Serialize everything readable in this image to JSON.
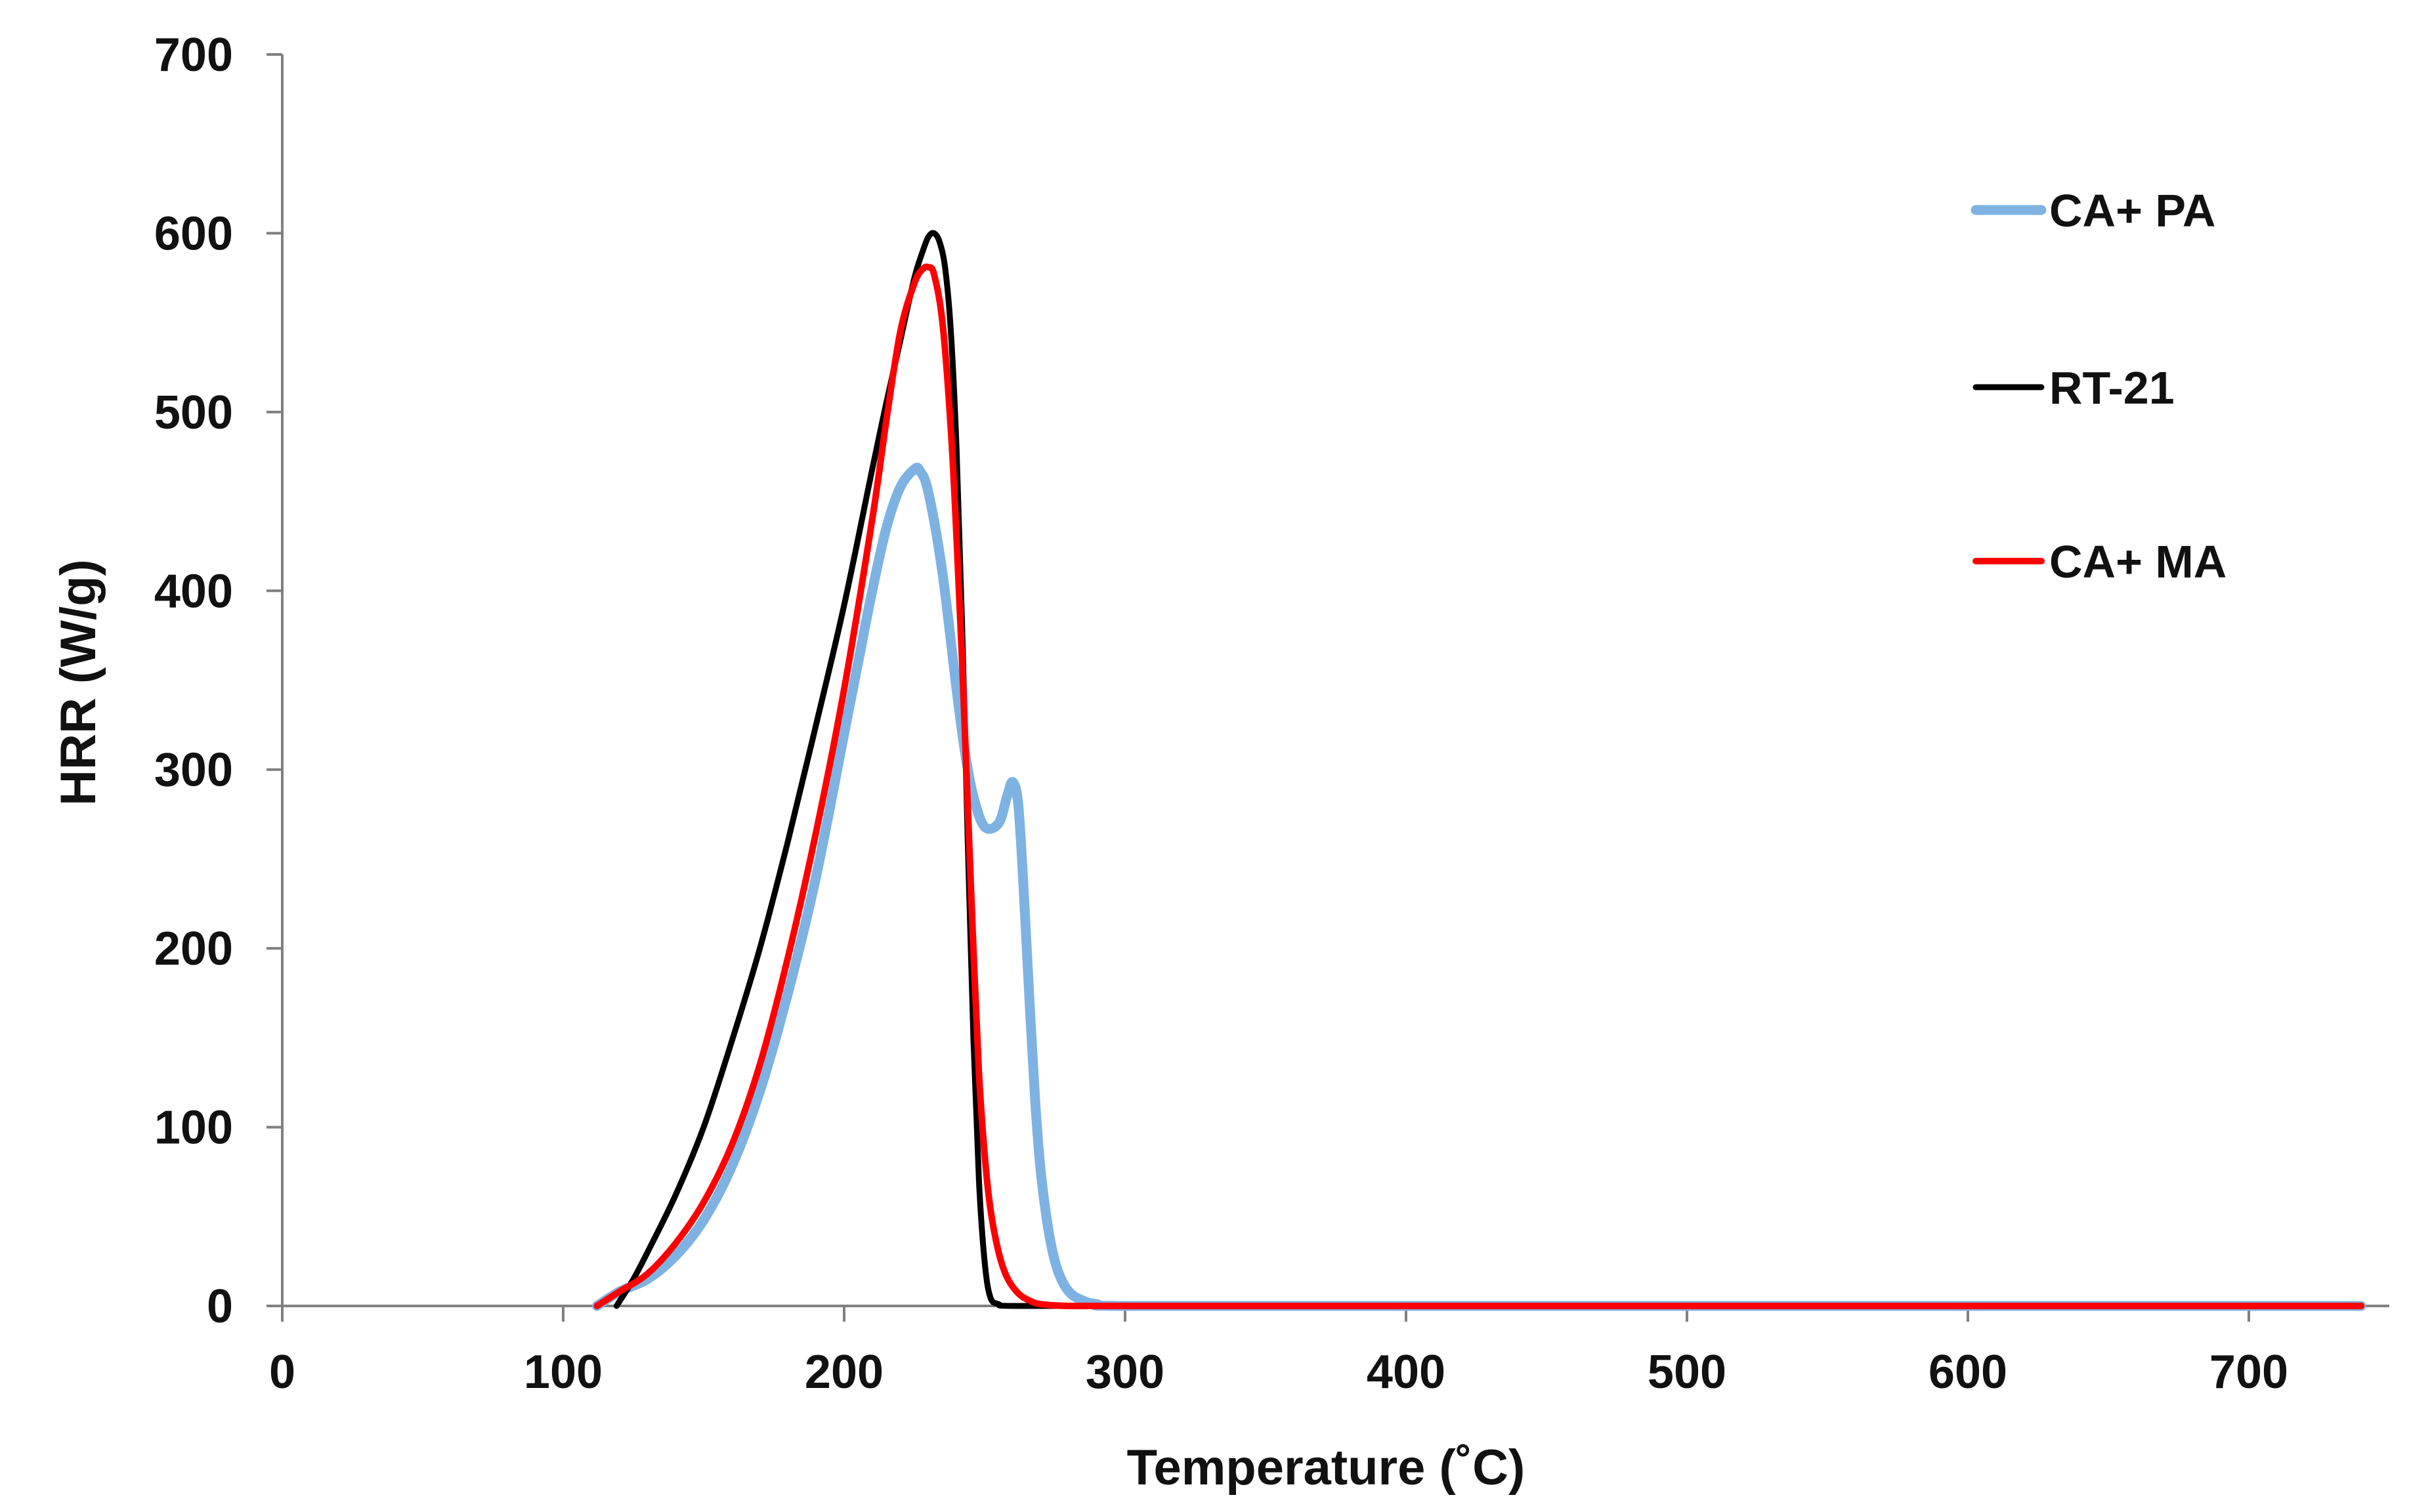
{
  "chart_data": {
    "type": "line",
    "title": "",
    "xlabel": "Temperature (˚C)",
    "ylabel": "HRR (W/g)",
    "xlim": [
      0,
      750
    ],
    "ylim": [
      0,
      700
    ],
    "xticks": [
      "0",
      "100",
      "200",
      "300",
      "400",
      "500",
      "600",
      "700"
    ],
    "yticks": [
      "0",
      "100",
      "200",
      "300",
      "400",
      "500",
      "600",
      "700"
    ],
    "legend_position": "top-right",
    "series": [
      {
        "name": "CA+ PA",
        "color": "#7eb2e2",
        "x": [
          112,
          120,
          130,
          140,
          150,
          160,
          170,
          180,
          190,
          200,
          205,
          210,
          215,
          220,
          225,
          227,
          230,
          235,
          240,
          243,
          246,
          250,
          255,
          258,
          260,
          262,
          264,
          266,
          268,
          270,
          273,
          276,
          280,
          285,
          290,
          300,
          400,
          500,
          600,
          740
        ],
        "y": [
          0,
          8,
          15,
          28,
          48,
          78,
          120,
          175,
          240,
          320,
          360,
          400,
          435,
          458,
          468,
          467,
          455,
          410,
          345,
          310,
          285,
          268,
          270,
          285,
          293,
          280,
          230,
          170,
          115,
          75,
          40,
          20,
          8,
          3,
          1,
          0,
          0,
          0,
          0,
          0
        ]
      },
      {
        "name": "RT-21",
        "color": "#000000",
        "x": [
          119,
          125,
          130,
          140,
          150,
          160,
          170,
          180,
          190,
          200,
          210,
          215,
          220,
          225,
          228,
          230,
          232,
          234,
          236,
          238,
          240,
          242,
          244,
          246,
          248,
          250,
          252,
          255,
          260,
          300,
          400,
          500,
          600,
          740
        ],
        "y": [
          0,
          15,
          30,
          62,
          100,
          148,
          200,
          260,
          325,
          392,
          468,
          505,
          540,
          575,
          590,
          598,
          600,
          595,
          580,
          545,
          480,
          380,
          260,
          150,
          70,
          25,
          5,
          1,
          0,
          0,
          0,
          0,
          0,
          0
        ]
      },
      {
        "name": "CA+ MA",
        "color": "#ff0000",
        "x": [
          112,
          120,
          130,
          140,
          150,
          160,
          170,
          180,
          190,
          200,
          210,
          215,
          220,
          225,
          228,
          230,
          232,
          235,
          238,
          240,
          242,
          244,
          246,
          248,
          250,
          252,
          255,
          258,
          262,
          266,
          270,
          280,
          300,
          400,
          500,
          600,
          740
        ],
        "y": [
          0,
          8,
          18,
          35,
          58,
          90,
          135,
          195,
          265,
          345,
          440,
          495,
          545,
          572,
          580,
          581,
          577,
          550,
          490,
          430,
          360,
          280,
          200,
          130,
          85,
          55,
          30,
          16,
          7,
          3,
          1,
          0,
          0,
          0,
          0,
          0,
          0
        ]
      }
    ]
  }
}
